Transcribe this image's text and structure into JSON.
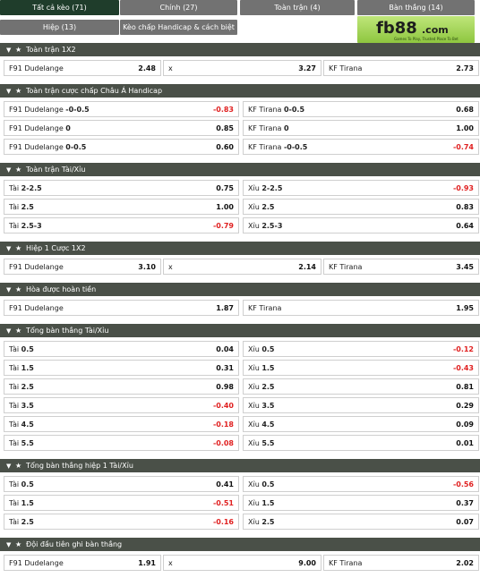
{
  "tabs": [
    {
      "label": "Tất cả kèo (71)",
      "active": true
    },
    {
      "label": "Chính (27)",
      "active": false
    },
    {
      "label": "Toàn trận (4)",
      "active": false
    },
    {
      "label": "Bàn thắng (14)",
      "active": false
    },
    {
      "label": "Hiệp (13)",
      "active": false
    },
    {
      "label": "Kèo chấp Handicap & cách biệt (3)",
      "active": false
    }
  ],
  "logo": {
    "brand": "fb88",
    "tld": ".com",
    "tagline": "Games To Play, Trusted Place To Bet"
  },
  "colors": {
    "active_tab": "#1f3d2b",
    "tab": "#727272",
    "section_header": "#4a5048",
    "negative_odds": "#e02020",
    "logo_green": "#8ec63f"
  },
  "sections": [
    {
      "title": "Toàn trận 1X2",
      "layout": "three",
      "rows": [
        [
          {
            "label": "F91 Dudelange",
            "value": "2.48"
          },
          {
            "label": "x",
            "value": "3.27"
          },
          {
            "label": "KF Tirana",
            "value": "2.73"
          }
        ]
      ]
    },
    {
      "title": "Toàn trận cược chấp Châu Á Handicap",
      "layout": "two",
      "rows": [
        [
          {
            "label": "F91 Dudelange",
            "line": "-0-0.5",
            "value": "-0.83"
          },
          {
            "label": "KF Tirana",
            "line": "0-0.5",
            "value": "0.68"
          }
        ],
        [
          {
            "label": "F91 Dudelange",
            "line": "0",
            "value": "0.85"
          },
          {
            "label": "KF Tirana",
            "line": "0",
            "value": "1.00"
          }
        ],
        [
          {
            "label": "F91 Dudelange",
            "line": "0-0.5",
            "value": "0.60"
          },
          {
            "label": "KF Tirana",
            "line": "-0-0.5",
            "value": "-0.74"
          }
        ]
      ]
    },
    {
      "title": "Toàn trận Tài/Xỉu",
      "layout": "two",
      "rows": [
        [
          {
            "label": "Tài",
            "line": "2-2.5",
            "value": "0.75"
          },
          {
            "label": "Xỉu",
            "line": "2-2.5",
            "value": "-0.93"
          }
        ],
        [
          {
            "label": "Tài",
            "line": "2.5",
            "value": "1.00"
          },
          {
            "label": "Xỉu",
            "line": "2.5",
            "value": "0.83"
          }
        ],
        [
          {
            "label": "Tài",
            "line": "2.5-3",
            "value": "-0.79"
          },
          {
            "label": "Xỉu",
            "line": "2.5-3",
            "value": "0.64"
          }
        ]
      ]
    },
    {
      "title": "Hiệp 1 Cược 1X2",
      "layout": "three",
      "rows": [
        [
          {
            "label": "F91 Dudelange",
            "value": "3.10"
          },
          {
            "label": "x",
            "value": "2.14"
          },
          {
            "label": "KF Tirana",
            "value": "3.45"
          }
        ]
      ]
    },
    {
      "title": "Hòa được hoàn tiền",
      "layout": "two",
      "rows": [
        [
          {
            "label": "F91 Dudelange",
            "value": "1.87"
          },
          {
            "label": "KF Tirana",
            "value": "1.95"
          }
        ]
      ]
    },
    {
      "title": "Tổng bàn thắng Tài/Xỉu",
      "layout": "two",
      "rows": [
        [
          {
            "label": "Tài",
            "line": "0.5",
            "value": "0.04"
          },
          {
            "label": "Xỉu",
            "line": "0.5",
            "value": "-0.12"
          }
        ],
        [
          {
            "label": "Tài",
            "line": "1.5",
            "value": "0.31"
          },
          {
            "label": "Xỉu",
            "line": "1.5",
            "value": "-0.43"
          }
        ],
        [
          {
            "label": "Tài",
            "line": "2.5",
            "value": "0.98"
          },
          {
            "label": "Xỉu",
            "line": "2.5",
            "value": "0.81"
          }
        ],
        [
          {
            "label": "Tài",
            "line": "3.5",
            "value": "-0.40"
          },
          {
            "label": "Xỉu",
            "line": "3.5",
            "value": "0.29"
          }
        ],
        [
          {
            "label": "Tài",
            "line": "4.5",
            "value": "-0.18"
          },
          {
            "label": "Xỉu",
            "line": "4.5",
            "value": "0.09"
          }
        ],
        [
          {
            "label": "Tài",
            "line": "5.5",
            "value": "-0.08"
          },
          {
            "label": "Xỉu",
            "line": "5.5",
            "value": "0.01"
          }
        ]
      ]
    },
    {
      "title": "Tổng bàn thắng hiệp 1 Tài/Xỉu",
      "layout": "two",
      "rows": [
        [
          {
            "label": "Tài",
            "line": "0.5",
            "value": "0.41"
          },
          {
            "label": "Xỉu",
            "line": "0.5",
            "value": "-0.56"
          }
        ],
        [
          {
            "label": "Tài",
            "line": "1.5",
            "value": "-0.51"
          },
          {
            "label": "Xỉu",
            "line": "1.5",
            "value": "0.37"
          }
        ],
        [
          {
            "label": "Tài",
            "line": "2.5",
            "value": "-0.16"
          },
          {
            "label": "Xỉu",
            "line": "2.5",
            "value": "0.07"
          }
        ]
      ]
    },
    {
      "title": "Đội đầu tiên ghi bàn thắng",
      "layout": "three",
      "rows": [
        [
          {
            "label": "F91 Dudelange",
            "value": "1.91"
          },
          {
            "label": "x",
            "value": "9.00"
          },
          {
            "label": "KF Tirana",
            "value": "2.02"
          }
        ]
      ]
    }
  ]
}
